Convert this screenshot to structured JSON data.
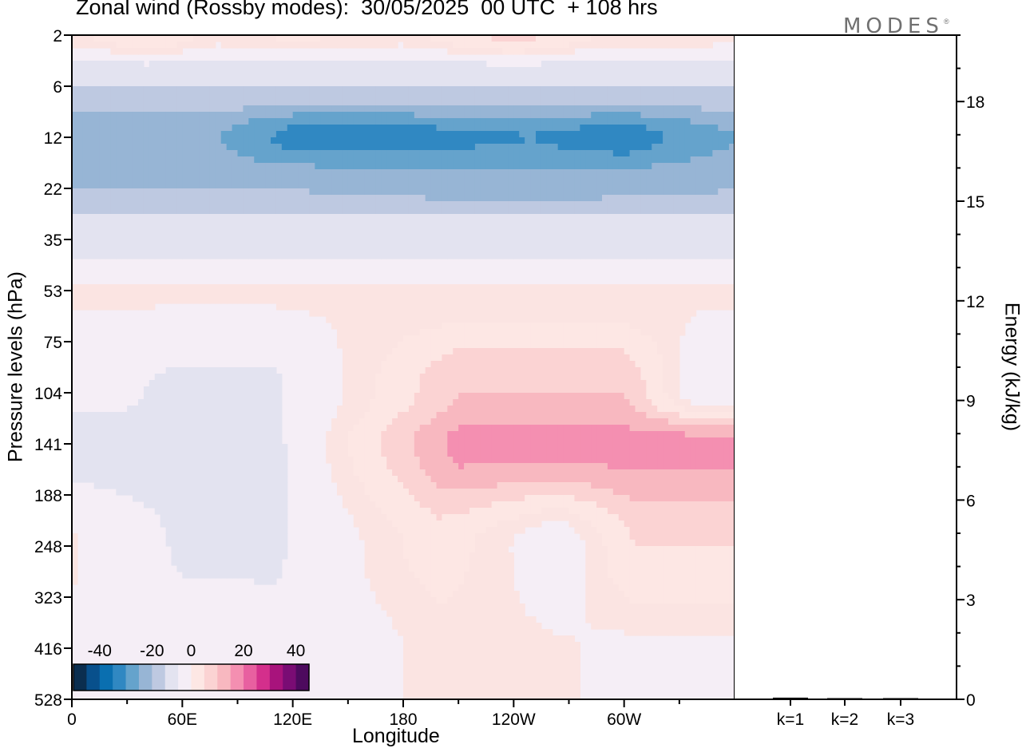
{
  "colors": {
    "neg": [
      "#0b2e4f",
      "#08508c",
      "#0a6fb0",
      "#3088c2",
      "#65a3cc",
      "#97b5d5",
      "#bec9e1",
      "#e3e3f0"
    ],
    "zero": "#f5eef6",
    "pos": [
      "#fde7e4",
      "#fbd3d3",
      "#f8b8c0",
      "#f48fb1",
      "#e860a0",
      "#d42f8c",
      "#a8137c",
      "#7a0c74",
      "#4d0a5e"
    ],
    "pos_weak": "#fbe4e2"
  },
  "chart_data": [
    {
      "type": "heatmap",
      "title": "Zonal wind (Rossby modes):  30/05/2025  00 UTC  + 108 hrs",
      "xlabel": "Longitude",
      "ylabel": "Pressure levels (hPa)",
      "x_ticks": [
        "0",
        "60E",
        "120E",
        "180",
        "120W",
        "60W"
      ],
      "x_tick_values": [
        0,
        60,
        120,
        180,
        240,
        300
      ],
      "xlim": [
        0,
        360
      ],
      "y_ticks": [
        "2",
        "6",
        "12",
        "22",
        "35",
        "53",
        "75",
        "104",
        "141",
        "188",
        "248",
        "323",
        "416",
        "528"
      ],
      "y_scale": "categorical",
      "colorbar": {
        "tick_labels": [
          "-40",
          "-20",
          "0",
          "20",
          "40"
        ],
        "tick_values": [
          -40,
          -20,
          0,
          20,
          40
        ],
        "levels": [
          -45,
          -40,
          -35,
          -30,
          -25,
          -20,
          -15,
          -10,
          -5,
          5,
          10,
          15,
          20,
          25,
          30,
          35,
          40,
          45
        ]
      },
      "field": [
        {
          "level": "2",
          "description": "weak positive",
          "lon_values": [
            [
              0,
              3
            ],
            [
              40,
              10
            ],
            [
              80,
              3
            ],
            [
              120,
              6
            ],
            [
              180,
              3
            ],
            [
              240,
              12
            ],
            [
              290,
              4
            ],
            [
              360,
              3
            ]
          ]
        },
        {
          "level": "6",
          "description": "negative band",
          "lon_values": [
            [
              0,
              -15
            ],
            [
              360,
              -15
            ]
          ]
        },
        {
          "level": "12",
          "description": "strong negative",
          "lon_values": [
            [
              0,
              -25
            ],
            [
              40,
              -25
            ],
            [
              80,
              -25
            ],
            [
              120,
              -32
            ],
            [
              180,
              -32
            ],
            [
              250,
              -30
            ],
            [
              300,
              -33
            ],
            [
              360,
              -25
            ]
          ]
        },
        {
          "level": "22",
          "description": "negative",
          "lon_values": [
            [
              0,
              -20
            ],
            [
              120,
              -20
            ],
            [
              240,
              -22
            ],
            [
              360,
              -20
            ]
          ]
        },
        {
          "level": "35",
          "description": "weak negative",
          "lon_values": [
            [
              0,
              -8
            ],
            [
              360,
              -8
            ]
          ]
        },
        {
          "level": "53",
          "description": "near zero",
          "lon_values": [
            [
              0,
              2
            ],
            [
              360,
              2
            ]
          ]
        },
        {
          "level": "104",
          "description": "mixed",
          "lon_values": [
            [
              20,
              -3
            ],
            [
              50,
              -6
            ],
            [
              110,
              -6
            ],
            [
              165,
              5
            ],
            [
              210,
              15
            ],
            [
              300,
              15
            ],
            [
              340,
              -3
            ]
          ]
        },
        {
          "level": "141",
          "description": "mixed",
          "lon_values": [
            [
              60,
              -8
            ],
            [
              105,
              -8
            ],
            [
              210,
              22
            ],
            [
              305,
              22
            ]
          ]
        },
        {
          "level": "248",
          "description": "mixed",
          "lon_values": [
            [
              0,
              2
            ],
            [
              60,
              -6
            ],
            [
              110,
              -6
            ],
            [
              200,
              8
            ],
            [
              265,
              -3
            ],
            [
              305,
              10
            ]
          ]
        },
        {
          "level": "416",
          "description": "weak",
          "lon_values": [
            [
              0,
              1
            ],
            [
              120,
              -3
            ],
            [
              200,
              3
            ],
            [
              300,
              1
            ]
          ]
        }
      ]
    },
    {
      "type": "bar",
      "ylabel": "Energy (kJ/kg)",
      "categories": [
        "k=1",
        "k=2",
        "k=3"
      ],
      "values": [
        0.05,
        0.02,
        0.02
      ],
      "y_ticks": [
        "0",
        "3",
        "6",
        "9",
        "12",
        "15",
        "18"
      ],
      "ylim": [
        0,
        20
      ]
    }
  ],
  "brand": {
    "name": "MODES",
    "mark": "®"
  }
}
